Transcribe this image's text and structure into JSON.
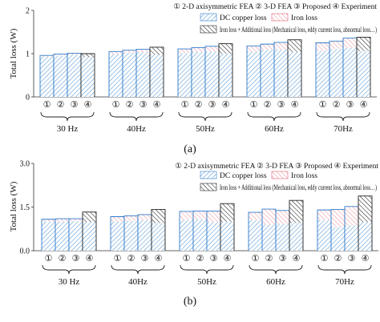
{
  "legend_labels": {
    "dc": "DC copper loss",
    "iron": "Iron loss",
    "add": "Iron loss + Additional loss (Mechanical loss, eddy current loss, abnormal loss…)"
  },
  "method_legend": "① 2-D axisymmetric FEA ② 3-D FEA ③ Proposed ④ Experiment",
  "method_markers": [
    "①",
    "②",
    "③",
    "④"
  ],
  "colors": {
    "dc_hatch": "#6aa5dc",
    "dc_border": "#2e7bcb",
    "iron_hatch": "#f0a0a8",
    "iron_border": "#e06070",
    "add_hatch": "#222222"
  },
  "chart_data": [
    {
      "type": "bar",
      "caption": "(a)",
      "ylabel": "Total loss (W)",
      "ylim": [
        0,
        2
      ],
      "yticks": [
        0,
        1,
        2
      ],
      "categories": [
        "30 Hz",
        "40Hz",
        "50Hz",
        "60Hz",
        "70Hz"
      ],
      "methods": [
        "①",
        "②",
        "③",
        "④"
      ],
      "series": [
        {
          "name": "DC copper loss",
          "values": [
            [
              0.93,
              0.96,
              0.98,
              0.92
            ],
            [
              0.99,
              1.02,
              1.03,
              0.97
            ],
            [
              1.01,
              1.04,
              1.05,
              1.0
            ],
            [
              1.05,
              1.09,
              1.1,
              1.04
            ],
            [
              1.07,
              1.11,
              1.13,
              1.06
            ]
          ]
        },
        {
          "name": "Iron loss",
          "values": [
            [
              0.03,
              0.03,
              0.03,
              0
            ],
            [
              0.06,
              0.06,
              0.07,
              0
            ],
            [
              0.1,
              0.1,
              0.12,
              0
            ],
            [
              0.13,
              0.13,
              0.16,
              0
            ],
            [
              0.18,
              0.18,
              0.23,
              0
            ]
          ]
        },
        {
          "name": "Iron loss + Additional loss (Mechanical loss, eddy current loss, abnormal loss…)",
          "values": [
            [
              0,
              0,
              0,
              0.08
            ],
            [
              0,
              0,
              0,
              0.18
            ],
            [
              0,
              0,
              0,
              0.23
            ],
            [
              0,
              0,
              0,
              0.28
            ],
            [
              0,
              0,
              0,
              0.32
            ]
          ]
        }
      ],
      "totals": [
        [
          0.96,
          0.99,
          1.01,
          1.0
        ],
        [
          1.05,
          1.08,
          1.1,
          1.15
        ],
        [
          1.11,
          1.14,
          1.17,
          1.23
        ],
        [
          1.18,
          1.22,
          1.26,
          1.32
        ],
        [
          1.25,
          1.29,
          1.36,
          1.38
        ]
      ]
    },
    {
      "type": "bar",
      "caption": "(b)",
      "ylabel": "Total loss (W)",
      "ylim": [
        0,
        3.0
      ],
      "yticks": [
        0.0,
        1.5,
        3.0
      ],
      "categories": [
        "30 Hz",
        "40Hz",
        "50Hz",
        "60Hz",
        "70Hz"
      ],
      "methods": [
        "①",
        "②",
        "③",
        "④"
      ],
      "series": [
        {
          "name": "DC copper loss",
          "values": [
            [
              1.0,
              1.0,
              1.02,
              0.98
            ],
            [
              1.0,
              1.02,
              1.05,
              0.95
            ],
            [
              1.05,
              1.08,
              0.98,
              1.0
            ],
            [
              1.05,
              0.9,
              0.93,
              0.95
            ],
            [
              1.05,
              0.8,
              0.87,
              0.98
            ]
          ]
        },
        {
          "name": "Iron loss",
          "values": [
            [
              0.08,
              0.1,
              0.08,
              0
            ],
            [
              0.17,
              0.18,
              0.19,
              0
            ],
            [
              0.3,
              0.28,
              0.38,
              0
            ],
            [
              0.27,
              0.53,
              0.45,
              0
            ],
            [
              0.35,
              0.62,
              0.65,
              0
            ]
          ]
        },
        {
          "name": "Iron loss + Additional loss (Mechanical loss, eddy current loss, abnormal loss…)",
          "values": [
            [
              0,
              0,
              0,
              0.35
            ],
            [
              0,
              0,
              0,
              0.47
            ],
            [
              0,
              0,
              0,
              0.62
            ],
            [
              0,
              0,
              0,
              0.78
            ],
            [
              0,
              0,
              0,
              0.9
            ]
          ]
        }
      ],
      "totals": [
        [
          1.08,
          1.1,
          1.1,
          1.33
        ],
        [
          1.17,
          1.2,
          1.24,
          1.42
        ],
        [
          1.35,
          1.36,
          1.36,
          1.62
        ],
        [
          1.32,
          1.43,
          1.38,
          1.73
        ],
        [
          1.4,
          1.42,
          1.52,
          1.88
        ]
      ]
    }
  ]
}
